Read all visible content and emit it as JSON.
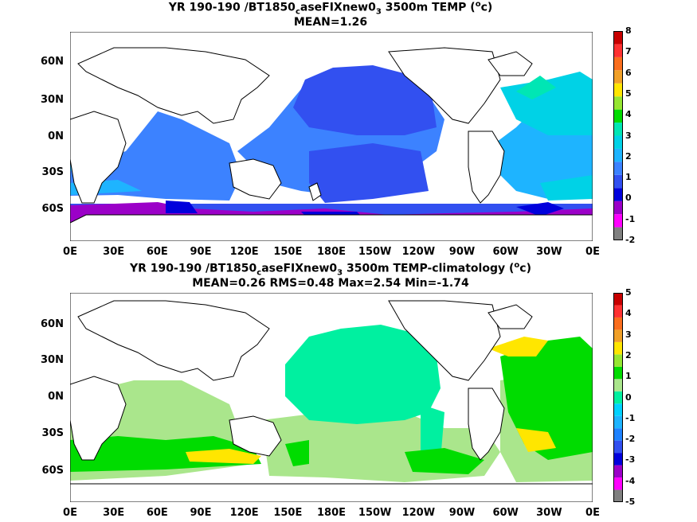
{
  "panel1": {
    "title_prefix": "YR 190-190 /BT1850",
    "title_sub1": "c",
    "title_mid": "aseFIXnew0",
    "title_sub2": "3",
    "title_suffix": " 3500m TEMP (",
    "title_sup": "o",
    "title_end": "c)",
    "stats": "MEAN=1.26",
    "colorbar_labels": [
      "8",
      "7",
      "6",
      "5",
      "4",
      "3",
      "2",
      "1",
      "0",
      "-1",
      "-2"
    ]
  },
  "panel2": {
    "title_prefix": "YR 190-190 /BT1850",
    "title_sub1": "c",
    "title_mid": "aseFIXnew0",
    "title_sub2": "3",
    "title_suffix": " 3500m TEMP-climatology (",
    "title_sup": "o",
    "title_end": "c)",
    "stats": "MEAN=0.26   RMS=0.48   Max=2.54   Min=-1.74",
    "colorbar_labels": [
      "5",
      "4",
      "3",
      "2",
      "1",
      "0",
      "-1",
      "-2",
      "-3",
      "-4",
      "-5"
    ]
  },
  "axes": {
    "xticks": [
      "0E",
      "30E",
      "60E",
      "90E",
      "120E",
      "150E",
      "180E",
      "150W",
      "120W",
      "90W",
      "60W",
      "30W",
      "0E"
    ],
    "yticks": [
      "60N",
      "30N",
      "0N",
      "30S",
      "60S"
    ]
  },
  "colors": {
    "levels": [
      "#7f7f7f",
      "#ff00ff",
      "#a000c8",
      "#0000ff",
      "#3c64ff",
      "#1e96ff",
      "#00d2ff",
      "#00f0a0",
      "#00dc00",
      "#a0e632",
      "#e6dc32",
      "#e6af2d",
      "#f08228",
      "#fa3c3c",
      "#c80000"
    ],
    "panel1_bar": [
      "#808080",
      "#ff00ff",
      "#9b00c8",
      "#0000dc",
      "#3250f0",
      "#3c82ff",
      "#1eb4ff",
      "#00d2e6",
      "#00e6b4",
      "#00dc00",
      "#96e632",
      "#ffe600",
      "#f0a028",
      "#fa6e1e",
      "#ff3232",
      "#c80000"
    ],
    "panel2_bar": [
      "#808080",
      "#ff00ff",
      "#9b00c8",
      "#0000dc",
      "#3250f0",
      "#1e82ff",
      "#1eb4ff",
      "#00d2ff",
      "#00f0a0",
      "#aae68c",
      "#00dc00",
      "#96e632",
      "#ffe600",
      "#f0a028",
      "#fa6e1e",
      "#ff3232",
      "#c80000"
    ]
  }
}
